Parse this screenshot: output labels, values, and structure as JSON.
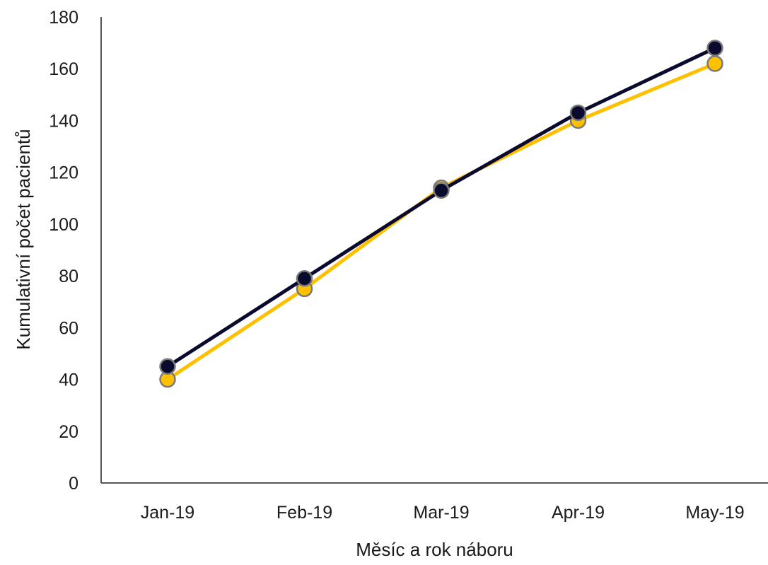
{
  "chart_data": {
    "type": "line",
    "title": "",
    "xlabel": "Měsíc a rok náboru",
    "ylabel": "Kumulativní počet pacientů",
    "categories": [
      "Jan-19",
      "Feb-19",
      "Mar-19",
      "Apr-19",
      "May-19"
    ],
    "ylim": [
      0,
      180
    ],
    "yticks": [
      0,
      20,
      40,
      60,
      80,
      100,
      120,
      140,
      160,
      180
    ],
    "grid": false,
    "legend": "none",
    "series": [
      {
        "color": "#FFC000",
        "values": [
          40,
          75,
          114,
          140,
          162
        ]
      },
      {
        "color": "#0A0A2E",
        "values": [
          45,
          79,
          113,
          143,
          168
        ]
      }
    ]
  }
}
